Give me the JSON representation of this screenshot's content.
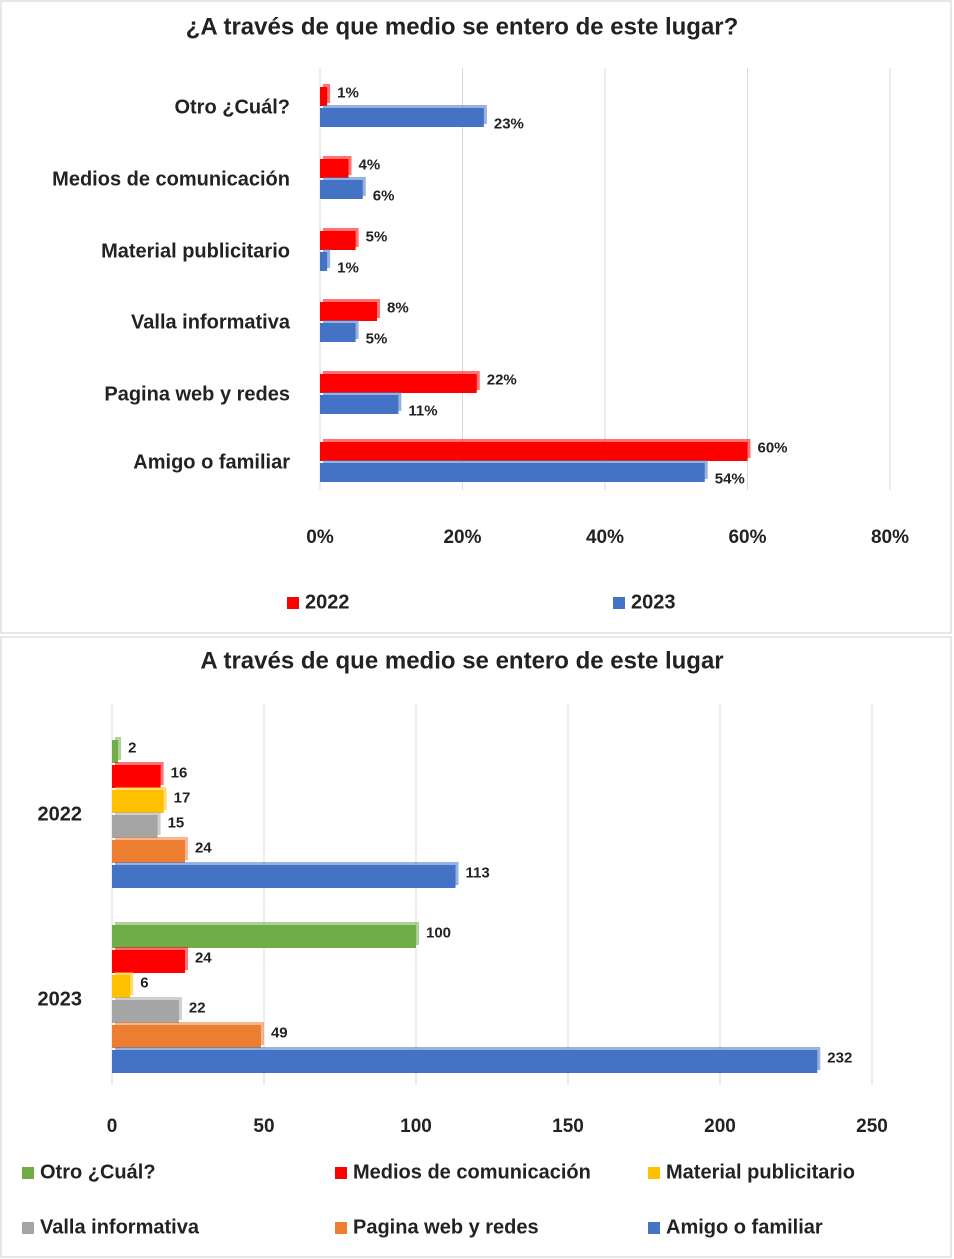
{
  "chart_data": [
    {
      "type": "bar",
      "orientation": "horizontal",
      "title": "¿A través de que medio se entero de este lugar?",
      "categories": [
        "Otro ¿Cuál?",
        "Medios de comunicación",
        "Material publicitario",
        "Valla informativa",
        "Pagina web y redes",
        "Amigo o familiar"
      ],
      "series": [
        {
          "name": "2022",
          "color": "#ff0000",
          "values": [
            1,
            4,
            5,
            8,
            22,
            60
          ],
          "value_labels": [
            "1%",
            "4%",
            "5%",
            "8%",
            "22%",
            "60%"
          ]
        },
        {
          "name": "2023",
          "color": "#4472c4",
          "values": [
            23,
            6,
            1,
            5,
            11,
            54
          ],
          "value_labels": [
            "23%",
            "6%",
            "1%",
            "5%",
            "11%",
            "54%"
          ]
        }
      ],
      "xlim": [
        0,
        80
      ],
      "xticks": [
        {
          "value": 0,
          "label": "0%"
        },
        {
          "value": 20,
          "label": "20%"
        },
        {
          "value": 40,
          "label": "40%"
        },
        {
          "value": 60,
          "label": "60%"
        },
        {
          "value": 80,
          "label": "80%"
        }
      ],
      "grid": true,
      "legend": "bottom"
    },
    {
      "type": "bar",
      "orientation": "horizontal",
      "title": "A través de que medio se entero de este lugar",
      "categories": [
        "2022",
        "2023"
      ],
      "series": [
        {
          "name": "Otro ¿Cuál?",
          "color": "#70ad47",
          "values": [
            2,
            100
          ]
        },
        {
          "name": "Medios de comunicación",
          "color": "#ff0000",
          "values": [
            16,
            24
          ]
        },
        {
          "name": "Material publicitario",
          "color": "#ffc000",
          "values": [
            17,
            6
          ]
        },
        {
          "name": "Valla informativa",
          "color": "#a5a5a5",
          "values": [
            15,
            22
          ]
        },
        {
          "name": "Pagina web y redes",
          "color": "#ed7d31",
          "values": [
            24,
            49
          ]
        },
        {
          "name": "Amigo o familiar",
          "color": "#4472c4",
          "values": [
            113,
            232
          ]
        }
      ],
      "xlim": [
        0,
        250
      ],
      "xticks": [
        0,
        50,
        100,
        150,
        200,
        250
      ],
      "grid": true,
      "legend": "bottom"
    }
  ]
}
